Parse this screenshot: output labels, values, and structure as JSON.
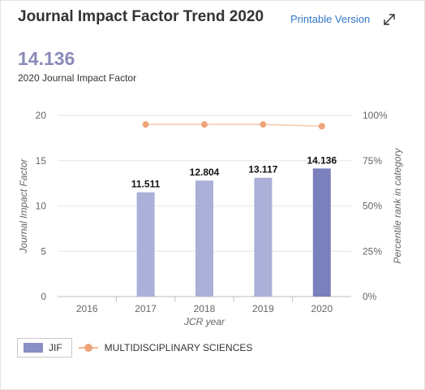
{
  "header": {
    "title": "Journal Impact Factor Trend 2020",
    "printable_label": "Printable Version",
    "expand_icon": "expand-arrows-icon"
  },
  "summary": {
    "value": "14.136",
    "label": "2020 Journal Impact Factor"
  },
  "legend": {
    "jif_label": "JIF",
    "category_label": "MULTIDISCIPLINARY SCIENCES"
  },
  "colors": {
    "bar": "#aab0d8",
    "bar_highlight": "#7a80bb",
    "percentile_line": "#f3c8aa",
    "percentile_point": "#eea47a"
  },
  "chart_data": {
    "type": "bar",
    "categories": [
      "2016",
      "2017",
      "2018",
      "2019",
      "2020"
    ],
    "series": [
      {
        "name": "JIF",
        "values": [
          null,
          11.511,
          12.804,
          13.117,
          14.136
        ],
        "labels": [
          "",
          "11.511",
          "12.804",
          "13.117",
          "14.136"
        ]
      },
      {
        "name": "MULTIDISCIPLINARY SCIENCES",
        "type": "line",
        "axis": "right",
        "x": [
          "2017",
          "2018",
          "2019",
          "2020"
        ],
        "values": [
          95,
          95,
          95,
          94
        ]
      }
    ],
    "xlabel": "JCR year",
    "ylabel": "Journal Impact Factor",
    "y2label": "Percentile rank in category",
    "ylim": [
      0,
      20
    ],
    "yticks": [
      "0",
      "5",
      "10",
      "15",
      "20"
    ],
    "y2lim": [
      0,
      100
    ],
    "y2ticks": [
      "0%",
      "25%",
      "50%",
      "75%",
      "100%"
    ],
    "grid": true,
    "legend_position": "bottom-left"
  }
}
